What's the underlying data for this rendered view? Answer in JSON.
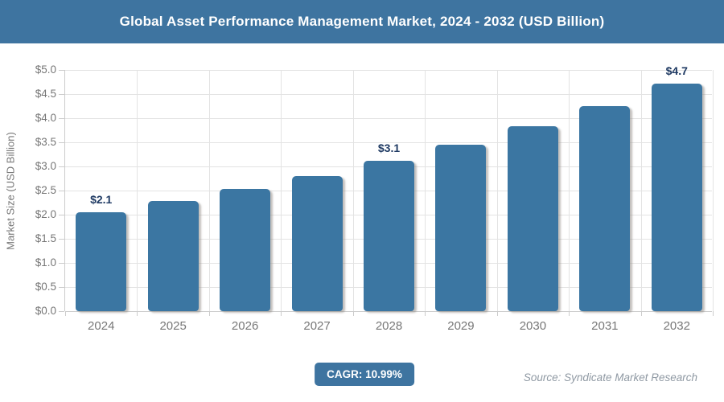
{
  "header": {
    "title": "Global Asset Performance Management Market, 2024 - 2032 (USD Billion)"
  },
  "chart_data": {
    "type": "bar",
    "title": "Global Asset Performance Management Market, 2024 - 2032 (USD Billion)",
    "categories": [
      "2024",
      "2025",
      "2026",
      "2027",
      "2028",
      "2029",
      "2030",
      "2031",
      "2032"
    ],
    "values": [
      2.05,
      2.28,
      2.53,
      2.8,
      3.11,
      3.45,
      3.83,
      4.25,
      4.72
    ],
    "bar_labels": [
      "$2.1",
      "",
      "",
      "",
      "$3.1",
      "",
      "",
      "",
      "$4.7"
    ],
    "xlabel": "",
    "ylabel": "Market Size (USD Billion)",
    "ylim": [
      0,
      5
    ],
    "y_ticks": [
      0,
      0.5,
      1,
      1.5,
      2,
      2.5,
      3,
      3.5,
      4,
      4.5,
      5
    ],
    "y_tick_labels": [
      "$0.0",
      "$0.5",
      "$1.0",
      "$1.5",
      "$2.0",
      "$2.5",
      "$3.0",
      "$3.5",
      "$4.0",
      "$4.5",
      "$5.0"
    ],
    "grid": "horizontal lines at each $0.5 step plus vertical category-boundary lines",
    "legend": "none"
  },
  "footer": {
    "cagr_label": "CAGR: 10.99%",
    "source": "Source: Syndicate Market Research"
  },
  "colors": {
    "header_bg": "#3e74a0",
    "bar_fill": "#3b76a2",
    "bar_value_label": "#1f3a63",
    "axis_text": "#777777",
    "gridline": "#e3e3e3",
    "axis_line": "#cccccc",
    "badge_bg": "#3e74a0",
    "badge_text": "#ffffff",
    "source_text": "#8f99a3",
    "title_text": "#ffffff"
  }
}
